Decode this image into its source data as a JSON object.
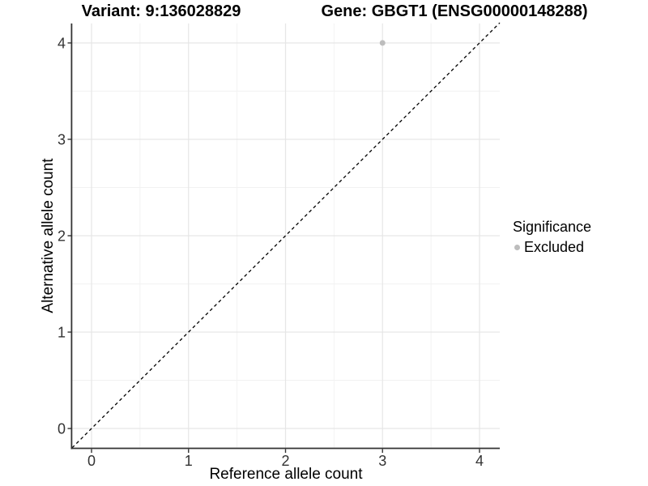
{
  "titles": {
    "variant": "Variant: 9:136028829",
    "gene": "Gene: GBGT1 (ENSG00000148288)"
  },
  "axes": {
    "x_label": "Reference allele count",
    "y_label": "Alternative allele count"
  },
  "legend": {
    "title": "Significance",
    "items": [
      {
        "label": "Excluded",
        "color": "#bdbdbd"
      }
    ]
  },
  "colors": {
    "background": "#ffffff",
    "grid_major": "#e6e6e6",
    "grid_minor": "#f2f2f2",
    "axis_line": "#333333",
    "tick_label": "#333333",
    "identity_line": "#000000",
    "point": "#bdbdbd"
  },
  "chart_data": {
    "type": "scatter",
    "xlabel": "Reference allele count",
    "ylabel": "Alternative allele count",
    "x_ticks": [
      0,
      1,
      2,
      3,
      4
    ],
    "y_ticks": [
      0,
      1,
      2,
      3,
      4
    ],
    "xlim": [
      -0.2,
      4.21
    ],
    "ylim": [
      -0.2,
      4.21
    ],
    "grid": "major+minor",
    "legend_position": "right",
    "series": [
      {
        "name": "Excluded",
        "color": "#bdbdbd",
        "points": [
          {
            "x": 3,
            "y": 4
          }
        ]
      }
    ],
    "reference_line": {
      "kind": "identity",
      "slope": 1,
      "intercept": 0,
      "style": "dashed",
      "color": "#000000"
    }
  }
}
